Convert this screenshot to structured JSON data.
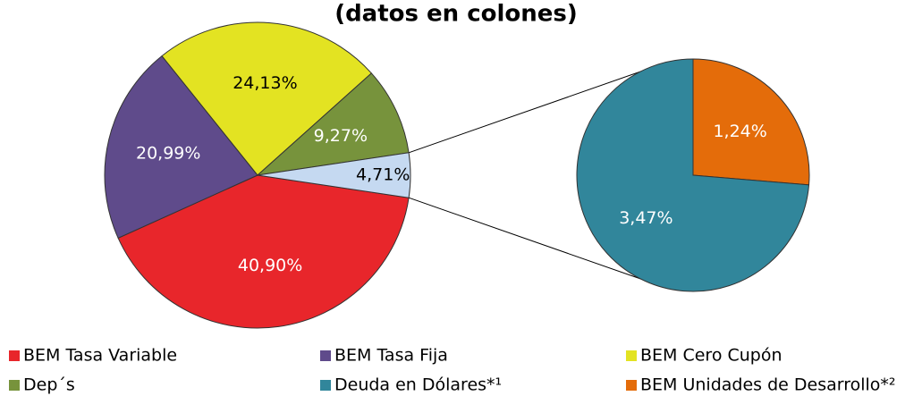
{
  "chart_data": {
    "type": "pie",
    "title": "(datos en colones)",
    "categories": [
      "BEM Tasa Variable",
      "BEM Tasa Fija",
      "BEM Cero Cupón",
      "Dep´s",
      "Deuda en Dólares*¹",
      "BEM Unidades de Desarrollo*²"
    ],
    "values": [
      40.9,
      20.99,
      24.13,
      9.27,
      3.47,
      1.24
    ],
    "value_labels": [
      "40,90%",
      "20,99%",
      "24,13%",
      "9,27%",
      "3,47%",
      "1,24%"
    ],
    "colors": [
      "#e8262b",
      "#5f4b8b",
      "#e3e322",
      "#77933c",
      "#31869b",
      "#e46c0a"
    ],
    "values_in_second_plot": 2,
    "other_value": 4.71,
    "other_value_label": "4,71%",
    "other_color": "#c5d9f1"
  }
}
